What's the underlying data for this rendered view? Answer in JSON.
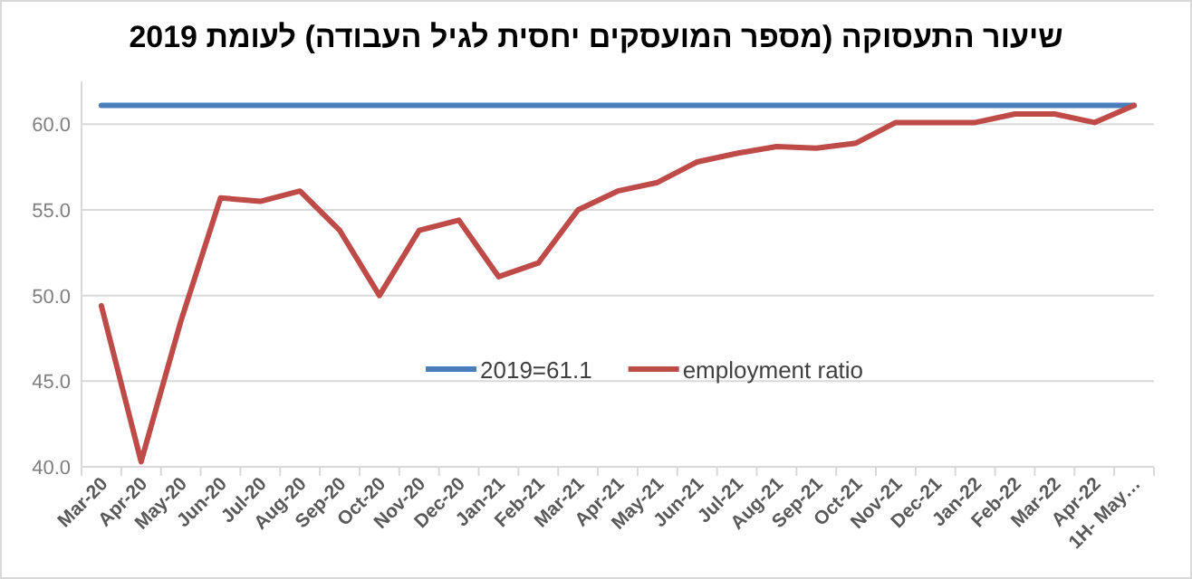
{
  "chart_data": {
    "type": "line",
    "title": "שיעור התעסוקה (מספר המועסקים יחסית לגיל העבודה) לעומת 2019",
    "categories": [
      "Mar-20",
      "Apr-20",
      "May-20",
      "Jun-20",
      "Jul-20",
      "Aug-20",
      "Sep-20",
      "Oct-20",
      "Nov-20",
      "Dec-20",
      "Jan-21",
      "Feb-21",
      "Mar-21",
      "Apr-21",
      "May-21",
      "Jun-21",
      "Jul-21",
      "Aug-21",
      "Sep-21",
      "Oct-21",
      "Nov-21",
      "Dec-21",
      "Jan-22",
      "Feb-22",
      "Mar-22",
      "Apr-22",
      "1H- May…"
    ],
    "series": [
      {
        "name": "2019=61.1",
        "color": "#4a7ebb",
        "values": [
          61.1,
          61.1,
          61.1,
          61.1,
          61.1,
          61.1,
          61.1,
          61.1,
          61.1,
          61.1,
          61.1,
          61.1,
          61.1,
          61.1,
          61.1,
          61.1,
          61.1,
          61.1,
          61.1,
          61.1,
          61.1,
          61.1,
          61.1,
          61.1,
          61.1,
          61.1,
          61.1
        ]
      },
      {
        "name": "employment ratio",
        "color": "#be4b48",
        "values": [
          49.4,
          40.3,
          48.5,
          55.7,
          55.5,
          56.1,
          53.8,
          50.0,
          53.8,
          54.4,
          51.1,
          51.9,
          55.0,
          56.1,
          56.6,
          57.8,
          58.3,
          58.7,
          58.6,
          58.9,
          60.1,
          60.1,
          60.1,
          60.6,
          60.6,
          60.1,
          61.1
        ]
      }
    ],
    "ylim": [
      40,
      62.5
    ],
    "yticks": [
      {
        "value": 40,
        "label": "40.0"
      },
      {
        "value": 45,
        "label": "45.0"
      },
      {
        "value": 50,
        "label": "50.0"
      },
      {
        "value": 55,
        "label": "55.0"
      },
      {
        "value": 60,
        "label": "60.0"
      }
    ],
    "grid": "y",
    "legend": "center",
    "marker": "none",
    "line_style": "solid"
  }
}
